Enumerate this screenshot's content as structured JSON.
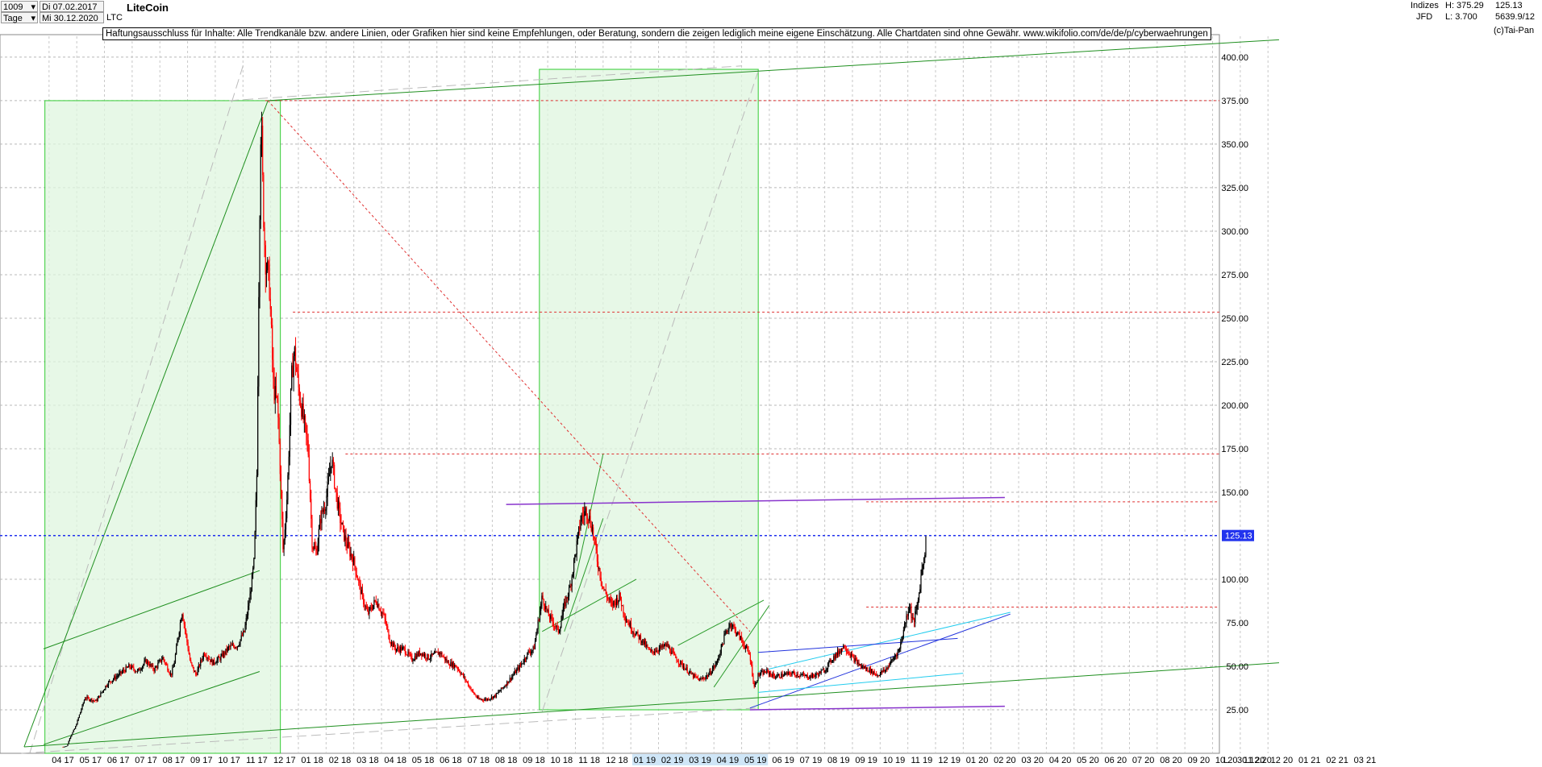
{
  "toolbar": {
    "id_value": "1009",
    "start_date": "Di 07.02.2017",
    "period": "Tage",
    "end_date": "Mi 30.12.2020",
    "symbol": "LTC",
    "title": "LiteCoin",
    "market": "Indizes",
    "broker": "JFD",
    "high": "H: 375.29",
    "low": "L: 3.700",
    "last": "125.13",
    "info": "5639.9/12",
    "copyright": "(c)Tai-Pan"
  },
  "disclaimer": "Haftungsausschluss für Inhalte: Alle Trendkanäle bzw. andere Linien, oder Grafiken hier sind keine Empfehlungen, oder Beratung, sondern die zeigen lediglich meine eigene Einschätzung. Alle Chartdaten sind ohne Gewähr.  www.wikifolio.com/de/de/p/cyberwaehrungen",
  "colors": {
    "candle_up": "#000000",
    "candle_down": "#ff0000",
    "box_fill": "#dff5df",
    "box_border": "#33cc33",
    "trend_green": "#1f8f1f",
    "resistance": "#e03030",
    "purple": "#8833cc",
    "blue_channel": "#2233dd",
    "cyan_channel": "#22ccee",
    "current_price_line": "#2233ee"
  },
  "chart_data": {
    "type": "candlestick",
    "title": "LiteCoin",
    "symbol": "LTC",
    "period": "daily",
    "ylim": [
      0,
      412
    ],
    "y_ticks": [
      "25.00",
      "50.00",
      "75.00",
      "100.00",
      "125.00",
      "150.00",
      "175.00",
      "200.00",
      "225.00",
      "250.00",
      "275.00",
      "300.00",
      "325.00",
      "350.00",
      "375.00",
      "400.00"
    ],
    "x_ticks": [
      "04 17",
      "05 17",
      "06 17",
      "07 17",
      "08 17",
      "09 17",
      "10 17",
      "11 17",
      "12 17",
      "01 18",
      "02 18",
      "03 18",
      "04 18",
      "05 18",
      "06 18",
      "07 18",
      "08 18",
      "09 18",
      "10 18",
      "11 18",
      "12 18",
      "01 19",
      "02 19",
      "03 19",
      "04 19",
      "05 19",
      "06 19",
      "07 19",
      "08 19",
      "09 19",
      "10 19",
      "11 19",
      "12 19",
      "01 20",
      "02 20",
      "03 20",
      "04 20",
      "05 20",
      "06 20",
      "07 20",
      "08 20",
      "09 20",
      "10 20",
      "11 20",
      "12 20",
      "01 21",
      "02 21",
      "03 21"
    ],
    "x_axis_end_label": "L",
    "x_axis_date": "30.12.20",
    "current_price": 125.13,
    "current_price_label": "125.13",
    "price_path": [
      [
        0,
        3.7
      ],
      [
        0.15,
        4.2
      ],
      [
        0.25,
        9
      ],
      [
        0.45,
        15
      ],
      [
        0.8,
        32
      ],
      [
        1.2,
        30
      ],
      [
        1.6,
        40
      ],
      [
        2.0,
        45
      ],
      [
        2.4,
        50
      ],
      [
        2.7,
        47
      ],
      [
        3.0,
        53
      ],
      [
        3.3,
        48
      ],
      [
        3.6,
        55
      ],
      [
        3.9,
        45
      ],
      [
        4.0,
        50
      ],
      [
        4.3,
        82
      ],
      [
        4.6,
        52
      ],
      [
        4.8,
        45
      ],
      [
        5.1,
        58
      ],
      [
        5.4,
        52
      ],
      [
        5.7,
        55
      ],
      [
        6.0,
        61
      ],
      [
        6.3,
        62
      ],
      [
        6.55,
        70
      ],
      [
        6.75,
        90
      ],
      [
        6.9,
        110
      ],
      [
        7.0,
        160
      ],
      [
        7.05,
        240
      ],
      [
        7.1,
        310
      ],
      [
        7.15,
        370
      ],
      [
        7.22,
        320
      ],
      [
        7.3,
        285
      ],
      [
        7.45,
        270
      ],
      [
        7.6,
        210
      ],
      [
        7.75,
        200
      ],
      [
        7.85,
        160
      ],
      [
        7.95,
        115
      ],
      [
        8.1,
        150
      ],
      [
        8.25,
        215
      ],
      [
        8.35,
        232
      ],
      [
        8.5,
        210
      ],
      [
        8.7,
        190
      ],
      [
        8.85,
        175
      ],
      [
        9.0,
        120
      ],
      [
        9.15,
        115
      ],
      [
        9.3,
        135
      ],
      [
        9.5,
        145
      ],
      [
        9.7,
        170
      ],
      [
        9.85,
        150
      ],
      [
        10.0,
        135
      ],
      [
        10.2,
        122
      ],
      [
        10.5,
        110
      ],
      [
        10.8,
        90
      ],
      [
        11.0,
        80
      ],
      [
        11.3,
        88
      ],
      [
        11.6,
        78
      ],
      [
        11.8,
        65
      ],
      [
        12.0,
        60
      ],
      [
        12.3,
        60
      ],
      [
        12.6,
        54
      ],
      [
        12.9,
        58
      ],
      [
        13.2,
        55
      ],
      [
        13.6,
        58
      ],
      [
        13.9,
        52
      ],
      [
        14.2,
        50
      ],
      [
        14.5,
        43
      ],
      [
        14.8,
        35
      ],
      [
        15.0,
        31
      ],
      [
        15.3,
        31
      ],
      [
        15.6,
        33
      ],
      [
        15.9,
        38
      ],
      [
        16.2,
        44
      ],
      [
        16.5,
        50
      ],
      [
        16.8,
        58
      ],
      [
        17.0,
        60
      ],
      [
        17.3,
        90
      ],
      [
        17.5,
        80
      ],
      [
        17.7,
        75
      ],
      [
        17.9,
        70
      ],
      [
        18.1,
        85
      ],
      [
        18.3,
        95
      ],
      [
        18.5,
        115
      ],
      [
        18.7,
        135
      ],
      [
        18.9,
        140
      ],
      [
        19.1,
        130
      ],
      [
        19.3,
        110
      ],
      [
        19.5,
        95
      ],
      [
        19.8,
        85
      ],
      [
        20.1,
        90
      ],
      [
        20.3,
        78
      ],
      [
        20.6,
        70
      ],
      [
        20.9,
        65
      ],
      [
        21.2,
        58
      ],
      [
        21.5,
        60
      ],
      [
        21.8,
        62
      ],
      [
        22.1,
        55
      ],
      [
        22.4,
        50
      ],
      [
        22.7,
        45
      ],
      [
        23.0,
        42
      ],
      [
        23.3,
        45
      ],
      [
        23.6,
        52
      ],
      [
        23.9,
        68
      ],
      [
        24.1,
        75
      ],
      [
        24.3,
        70
      ],
      [
        24.5,
        65
      ],
      [
        24.8,
        56
      ],
      [
        24.95,
        38
      ],
      [
        25.1,
        45
      ],
      [
        25.4,
        47
      ],
      [
        25.7,
        44
      ],
      [
        26.0,
        45
      ],
      [
        26.3,
        46
      ],
      [
        26.6,
        45
      ],
      [
        26.9,
        44
      ],
      [
        27.2,
        45
      ],
      [
        27.5,
        48
      ],
      [
        27.8,
        55
      ],
      [
        28.0,
        58
      ],
      [
        28.2,
        62
      ],
      [
        28.5,
        55
      ],
      [
        28.8,
        50
      ],
      [
        29.1,
        48
      ],
      [
        29.4,
        45
      ],
      [
        29.7,
        48
      ],
      [
        30.0,
        55
      ],
      [
        30.2,
        60
      ],
      [
        30.4,
        75
      ],
      [
        30.55,
        85
      ],
      [
        30.7,
        75
      ],
      [
        30.85,
        85
      ],
      [
        31.0,
        105
      ],
      [
        31.1,
        115
      ],
      [
        31.17,
        125.13
      ]
    ],
    "annotations": {
      "horizontal_resistance": [
        375,
        253.5,
        172,
        144.5,
        84
      ],
      "purple_lines": [
        [
          [
            16,
            143
          ],
          [
            34,
            147
          ]
        ],
        [
          [
            24.8,
            25
          ],
          [
            34,
            27
          ]
        ]
      ]
    }
  }
}
